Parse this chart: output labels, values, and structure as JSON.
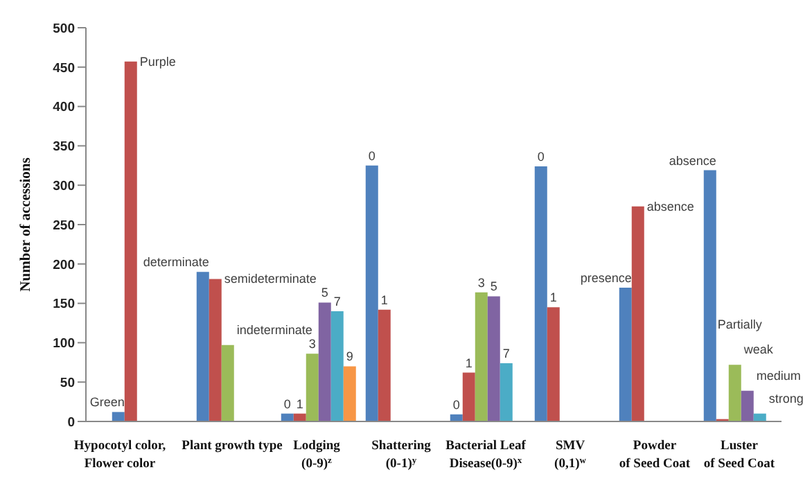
{
  "chart_data": {
    "type": "bar",
    "ylabel": "Number of accessions",
    "categories": [
      "Hypocotyl color,\nFlower color",
      "Plant growth type",
      "Lodging\n(0-9)$^{z}$",
      "Shattering\n(0-1)$^{y}$",
      "Bacterial Leaf\nDisease(0-9)$^{x}$",
      "SMV\n(0,1)$^{w}$",
      "Powder\nof Seed Coat",
      "Luster\nof Seed Coat"
    ],
    "series": [
      {
        "color": "#4f81bd",
        "values": [
          12,
          190,
          10,
          325,
          9,
          324,
          170,
          319
        ]
      },
      {
        "color": "#c0504d",
        "values": [
          457,
          181,
          10,
          142,
          62,
          145,
          273,
          3
        ]
      },
      {
        "color": "#9bbb59",
        "values": [
          null,
          97,
          86,
          null,
          164,
          null,
          null,
          72
        ]
      },
      {
        "color": "#8064a2",
        "values": [
          null,
          null,
          151,
          null,
          159,
          null,
          null,
          39
        ]
      },
      {
        "color": "#4bacc6",
        "values": [
          null,
          null,
          140,
          null,
          74,
          null,
          null,
          10
        ]
      },
      {
        "color": "#f79646",
        "values": [
          null,
          null,
          70,
          null,
          null,
          null,
          null,
          null
        ]
      }
    ],
    "annotations": [
      "Green",
      "Purple",
      "determinate",
      "semideterminate",
      "indeterminate",
      "0",
      "1",
      "3",
      "5",
      "7",
      "9",
      "0",
      "1",
      "0",
      "1",
      "3",
      "5",
      "7",
      "0",
      "1",
      "presence",
      "absence",
      "absence",
      "Partially",
      "weak",
      "medium",
      "strong"
    ],
    "ylim": [
      0,
      500
    ],
    "yticks": [
      0,
      50,
      100,
      150,
      200,
      250,
      300,
      350,
      400,
      450,
      500
    ],
    "grid": false,
    "legend": false
  }
}
